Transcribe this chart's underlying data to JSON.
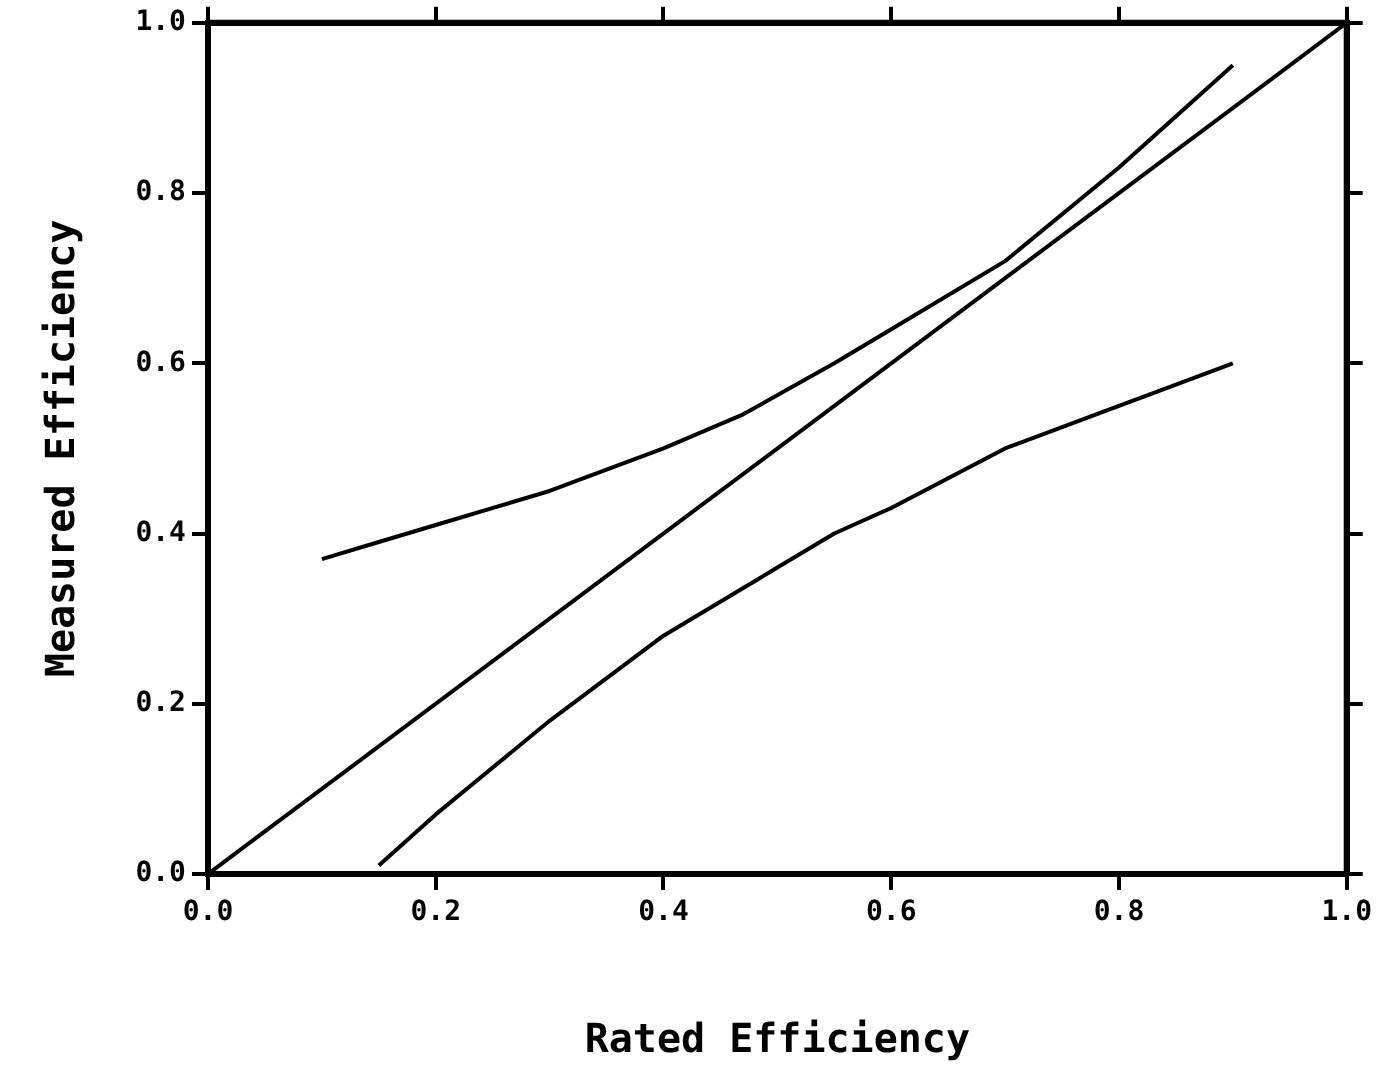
{
  "chart_data": {
    "type": "line",
    "xlabel": "Rated Efficiency",
    "ylabel": "Measured Efficiency",
    "xlim": [
      0,
      1
    ],
    "ylim": [
      0,
      1
    ],
    "xticks": [
      {
        "value": 0,
        "label": "0.0"
      },
      {
        "value": 0.2,
        "label": "0.2"
      },
      {
        "value": 0.4,
        "label": "0.4"
      },
      {
        "value": 0.6,
        "label": "0.6"
      },
      {
        "value": 0.8,
        "label": "0.8"
      },
      {
        "value": 1,
        "label": "1.0"
      }
    ],
    "yticks": [
      {
        "value": 0,
        "label": "0.0"
      },
      {
        "value": 0.2,
        "label": "0.2"
      },
      {
        "value": 0.4,
        "label": "0.4"
      },
      {
        "value": 0.6,
        "label": "0.6"
      },
      {
        "value": 0.8,
        "label": "0.8"
      },
      {
        "value": 1,
        "label": "1.0"
      }
    ],
    "grid": false,
    "legend": false,
    "marker": "none",
    "line_style": "solid",
    "series": [
      {
        "color": "#000000",
        "x": [
          0,
          1
        ],
        "values": [
          0,
          1
        ]
      },
      {
        "color": "#000000",
        "x": [
          0.1,
          0.15,
          0.2,
          0.3,
          0.4,
          0.47,
          0.55,
          0.6,
          0.7,
          0.8,
          0.9
        ],
        "values": [
          0.37,
          0.39,
          0.41,
          0.45,
          0.5,
          0.54,
          0.6,
          0.64,
          0.72,
          0.83,
          0.95
        ]
      },
      {
        "color": "#000000",
        "x": [
          0.15,
          0.2,
          0.3,
          0.4,
          0.5,
          0.55,
          0.6,
          0.7,
          0.8,
          0.9
        ],
        "values": [
          0.01,
          0.07,
          0.18,
          0.28,
          0.36,
          0.4,
          0.43,
          0.5,
          0.55,
          0.6
        ]
      }
    ]
  }
}
